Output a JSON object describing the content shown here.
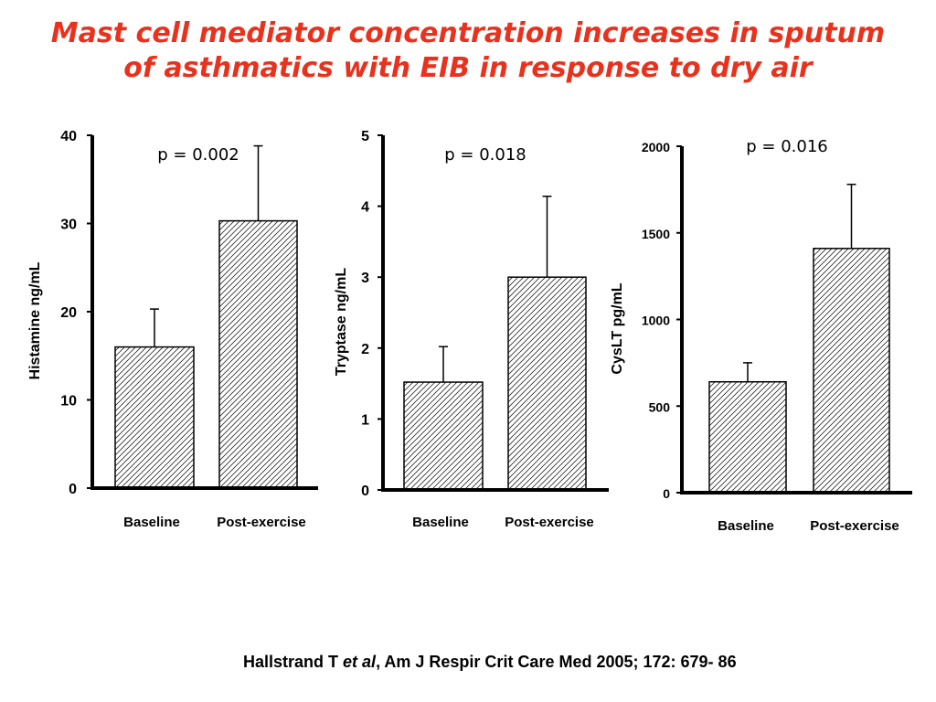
{
  "title": {
    "line1": "Mast cell mediator concentration increases in sputum",
    "line2": "of asthmatics with EIB in response to dry air"
  },
  "citation": {
    "author": "Hallstrand T ",
    "etal": "et al",
    "rest": ", Am J Respir Crit Care Med 2005; 172: 679- 86"
  },
  "colors": {
    "title": "#e8321e",
    "bar_fill": "#ffffff",
    "hatch": "#000000",
    "text": "#000000"
  },
  "chart_data": [
    {
      "type": "bar",
      "title": "",
      "xlabel": "",
      "ylabel": "Histamine ng/mL",
      "categories": [
        "Baseline",
        "Post-exercise"
      ],
      "values": [
        16,
        30.3
      ],
      "errors": [
        4.3,
        8.5
      ],
      "ylim": [
        0,
        40
      ],
      "yticks": [
        0,
        10,
        20,
        30,
        40
      ],
      "annotation": "p = 0.002",
      "grid": false,
      "legend": "none"
    },
    {
      "type": "bar",
      "title": "",
      "xlabel": "",
      "ylabel": "Tryptase ng/mL",
      "categories": [
        "Baseline",
        "Post-exercise"
      ],
      "values": [
        1.52,
        3.0
      ],
      "errors": [
        0.5,
        1.14
      ],
      "ylim": [
        0,
        5
      ],
      "yticks": [
        0,
        1,
        2,
        3,
        4,
        5
      ],
      "annotation": "p = 0.018",
      "grid": false,
      "legend": "none"
    },
    {
      "type": "bar",
      "title": "",
      "xlabel": "",
      "ylabel": "CysLT pg/mL",
      "categories": [
        "Baseline",
        "Post-exercise"
      ],
      "values": [
        640,
        1410
      ],
      "errors": [
        110,
        370
      ],
      "ylim": [
        0,
        2000
      ],
      "yticks": [
        0,
        500,
        1000,
        1500,
        2000
      ],
      "annotation": "p = 0.016",
      "grid": false,
      "legend": "none"
    }
  ]
}
